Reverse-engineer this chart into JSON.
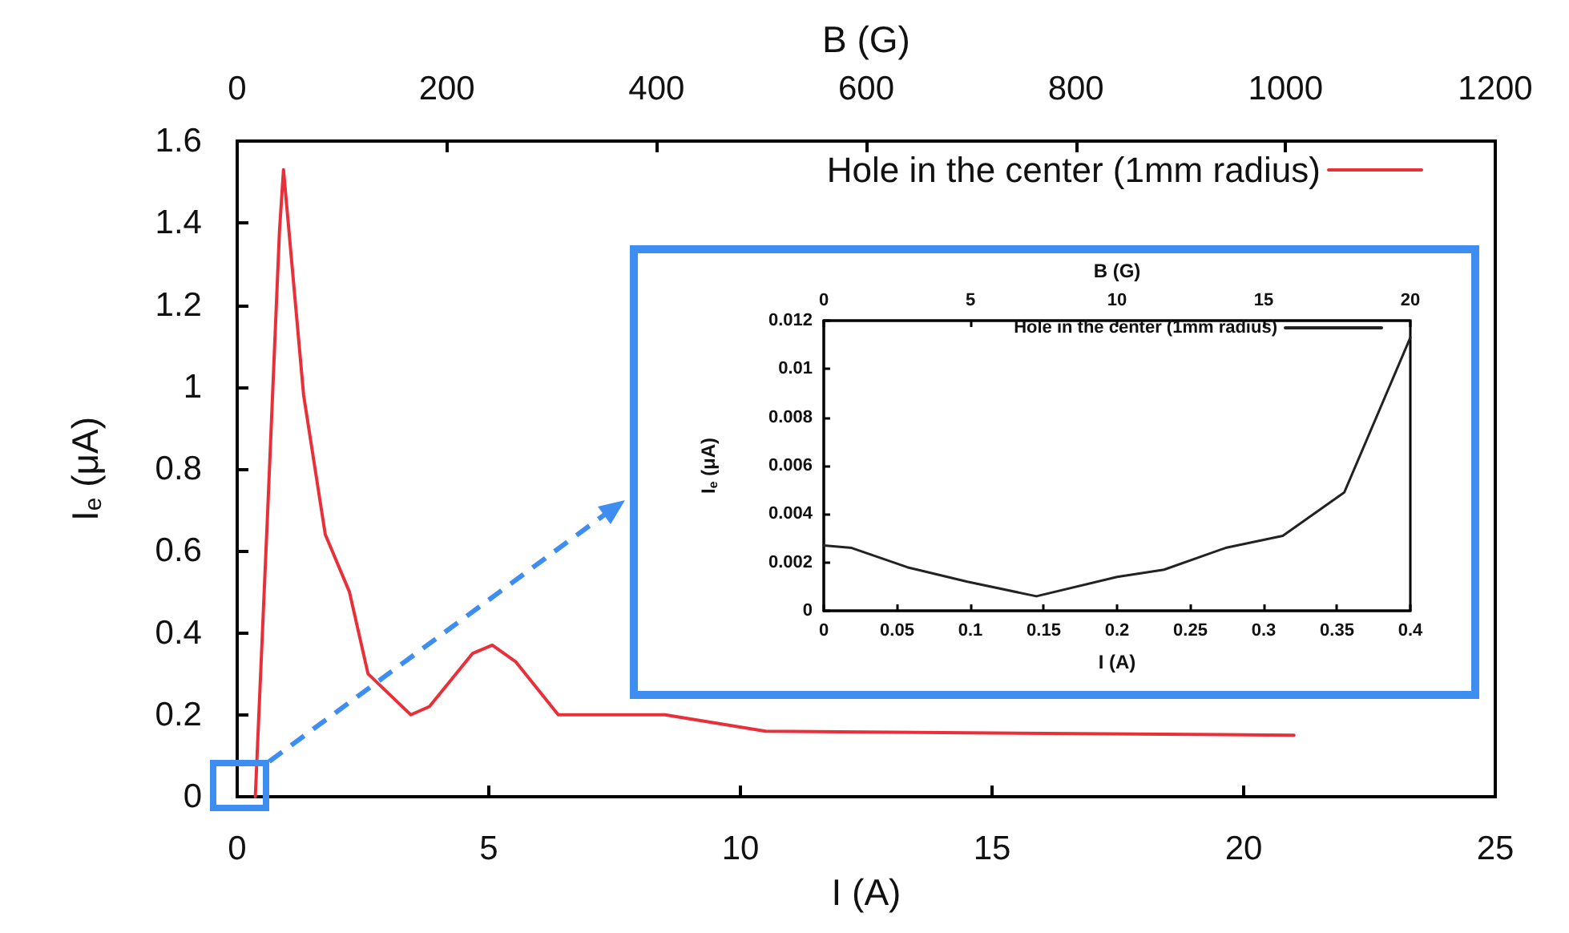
{
  "chart_data": [
    {
      "type": "line",
      "xlabel": "I (A)",
      "x2label": "B (G)",
      "ylabel": "I$_{e}$ (μA)",
      "x": [
        0.36,
        0.6,
        0.84,
        0.92,
        1.32,
        1.75,
        2.23,
        2.6,
        3.45,
        3.82,
        4.68,
        5.07,
        5.53,
        6.38,
        8.5,
        10.5,
        21.0
      ],
      "series": [
        {
          "name": "Hole in the center (1mm radius)",
          "color": "#e8303a",
          "values": [
            0,
            0.68,
            1.38,
            1.53,
            0.98,
            0.64,
            0.5,
            0.3,
            0.2,
            0.22,
            0.35,
            0.37,
            0.33,
            0.2,
            0.2,
            0.16,
            0.15
          ]
        }
      ],
      "xlim": [
        0,
        25
      ],
      "xticks": [
        0,
        5,
        10,
        15,
        20,
        25
      ],
      "x2lim": [
        0,
        1200
      ],
      "x2ticks": [
        0,
        200,
        400,
        600,
        800,
        1000,
        1200
      ],
      "ylim": [
        0,
        1.6
      ],
      "yticks": [
        0,
        0.2,
        0.4,
        0.6,
        0.8,
        1,
        1.2,
        1.4,
        1.6
      ],
      "legend": "top right",
      "marker": "none",
      "line_style": "solid",
      "grid": false
    },
    {
      "type": "line",
      "xlabel": "I (A)",
      "x2label": "B (G)",
      "ylabel": "I$_{e}$ (μA)",
      "x": [
        0,
        0.019,
        0.057,
        0.098,
        0.145,
        0.2,
        0.232,
        0.274,
        0.313,
        0.355,
        0.4
      ],
      "series": [
        {
          "name": "Hole in the center (1mm radius)",
          "color": "#222222",
          "values": [
            0.0027,
            0.0026,
            0.0018,
            0.0012,
            0.0006,
            0.0014,
            0.0017,
            0.0026,
            0.0031,
            0.0049,
            0.0113
          ]
        }
      ],
      "xlim": [
        0,
        0.4
      ],
      "xticks": [
        0,
        0.05,
        0.1,
        0.15,
        0.2,
        0.25,
        0.3,
        0.35,
        0.4
      ],
      "x2lim": [
        0,
        20
      ],
      "x2ticks": [
        0,
        5,
        10,
        15,
        20
      ],
      "ylim": [
        0,
        0.012
      ],
      "yticks": [
        0,
        0.002,
        0.004,
        0.006,
        0.008,
        0.01,
        0.012
      ],
      "legend": "top right",
      "marker": "none",
      "line_style": "solid",
      "grid": false
    }
  ]
}
